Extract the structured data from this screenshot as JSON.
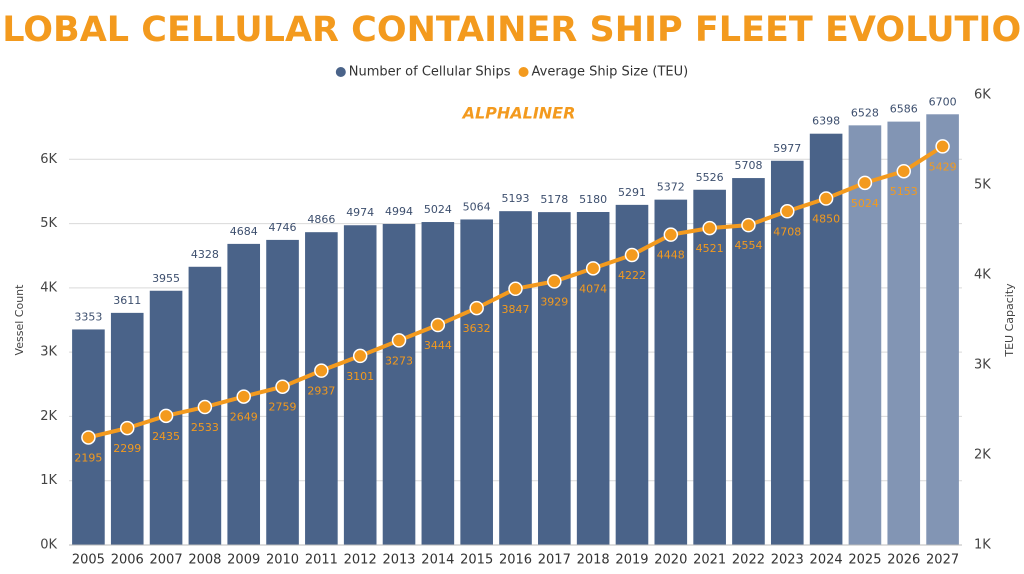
{
  "chart_data": {
    "type": "combo",
    "title": "GLOBAL CELLULAR CONTAINER SHIP FLEET EVOLUTION",
    "watermark": "ALPHALINER",
    "categories": [
      "2005",
      "2006",
      "2007",
      "2008",
      "2009",
      "2010",
      "2011",
      "2012",
      "2013",
      "2014",
      "2015",
      "2016",
      "2017",
      "2018",
      "2019",
      "2020",
      "2021",
      "2022",
      "2023",
      "2024",
      "2025",
      "2026",
      "2027"
    ],
    "series": [
      {
        "name": "Number of Cellular Ships",
        "type": "bar",
        "color": "#4a6389",
        "colors": [
          "#4a6389",
          "#4a6389",
          "#4a6389",
          "#4a6389",
          "#4a6389",
          "#4a6389",
          "#4a6389",
          "#4a6389",
          "#4a6389",
          "#4a6389",
          "#4a6389",
          "#4a6389",
          "#4a6389",
          "#4a6389",
          "#4a6389",
          "#4a6389",
          "#4a6389",
          "#4a6389",
          "#4a6389",
          "#4a6389",
          "#8295b4",
          "#8295b4",
          "#8295b4"
        ],
        "values": [
          3353,
          3611,
          3955,
          4328,
          4684,
          4746,
          4866,
          4974,
          4994,
          5024,
          5064,
          5193,
          5178,
          5180,
          5291,
          5372,
          5526,
          5708,
          5977,
          6398,
          6528,
          6586,
          6700
        ]
      },
      {
        "name": "Average Ship Size (TEU)",
        "type": "line",
        "axis": "y2",
        "color": "#f39a1e",
        "values": [
          2195,
          2299,
          2435,
          2533,
          2649,
          2759,
          2937,
          3101,
          3273,
          3444,
          3632,
          3847,
          3929,
          4074,
          4222,
          4448,
          4521,
          4554,
          4708,
          4850,
          5024,
          5153,
          5429
        ]
      }
    ],
    "ylabel": "Vessel Count",
    "y2label": "TEU Capacity",
    "ylim": [
      0,
      7000
    ],
    "yticks": [
      {
        "value": 0,
        "label": "0K"
      },
      {
        "value": 1000,
        "label": "1K"
      },
      {
        "value": 2000,
        "label": "2K"
      },
      {
        "value": 3000,
        "label": "3K"
      },
      {
        "value": 4000,
        "label": "4K"
      },
      {
        "value": 5000,
        "label": "5K"
      },
      {
        "value": 6000,
        "label": "6K"
      }
    ],
    "y2lim": [
      1000,
      6000
    ],
    "y2ticks": [
      {
        "value": 1000,
        "label": "1K"
      },
      {
        "value": 2000,
        "label": "2K"
      },
      {
        "value": 3000,
        "label": "3K"
      },
      {
        "value": 4000,
        "label": "4K"
      },
      {
        "value": 5000,
        "label": "5K"
      },
      {
        "value": 6000,
        "label": "6K"
      }
    ],
    "grid": true
  }
}
